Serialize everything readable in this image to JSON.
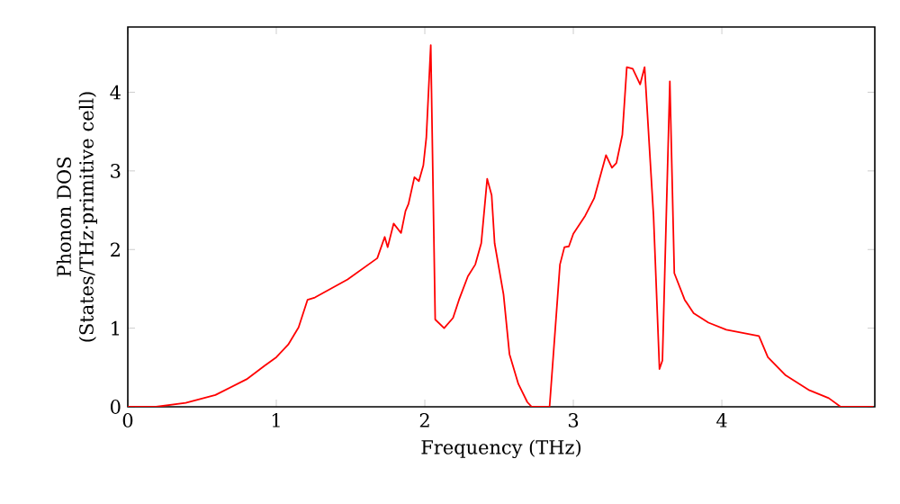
{
  "chart_data": {
    "type": "line",
    "xlabel": "Frequency (THz)",
    "ylabel": "Phonon DOS (States/THz·primitive cell)",
    "xlim": [
      0,
      5.03
    ],
    "ylim": [
      0,
      4.83
    ],
    "xticks": [
      0,
      1,
      2,
      3,
      4
    ],
    "yticks": [
      0,
      1,
      2,
      3,
      4
    ],
    "grid": false,
    "marker": "none",
    "line_style": "solid",
    "x": [
      0,
      0.19,
      0.39,
      0.59,
      0.8,
      0.92,
      1.0,
      1.08,
      1.15,
      1.21,
      1.26,
      1.48,
      1.68,
      1.73,
      1.75,
      1.79,
      1.84,
      1.87,
      1.89,
      1.93,
      1.96,
      1.99,
      2.01,
      2.04,
      2.07,
      2.13,
      2.19,
      2.23,
      2.29,
      2.34,
      2.38,
      2.42,
      2.45,
      2.47,
      2.53,
      2.57,
      2.63,
      2.69,
      2.72,
      2.84,
      2.91,
      2.94,
      2.97,
      3.0,
      3.08,
      3.14,
      3.22,
      3.26,
      3.29,
      3.33,
      3.36,
      3.4,
      3.45,
      3.48,
      3.54,
      3.58,
      3.6,
      3.65,
      3.68,
      3.75,
      3.81,
      3.91,
      4.03,
      4.25,
      4.31,
      4.43,
      4.59,
      4.72,
      4.8,
      5.02
    ],
    "series": [
      {
        "color": "#ff0000",
        "values": [
          0,
          0,
          0.05,
          0.15,
          0.35,
          0.52,
          0.63,
          0.79,
          1.01,
          1.36,
          1.39,
          1.62,
          1.89,
          2.16,
          2.03,
          2.33,
          2.21,
          2.49,
          2.58,
          2.92,
          2.87,
          3.07,
          3.42,
          4.6,
          1.11,
          1.0,
          1.13,
          1.36,
          1.66,
          1.81,
          2.08,
          2.9,
          2.69,
          2.08,
          1.43,
          0.67,
          0.29,
          0.06,
          0,
          0,
          1.81,
          2.03,
          2.04,
          2.2,
          2.43,
          2.65,
          3.2,
          3.04,
          3.1,
          3.46,
          4.32,
          4.3,
          4.1,
          4.32,
          2.43,
          0.48,
          0.59,
          4.14,
          1.7,
          1.36,
          1.19,
          1.07,
          0.98,
          0.9,
          0.63,
          0.4,
          0.21,
          0.11,
          0,
          0
        ]
      }
    ]
  }
}
